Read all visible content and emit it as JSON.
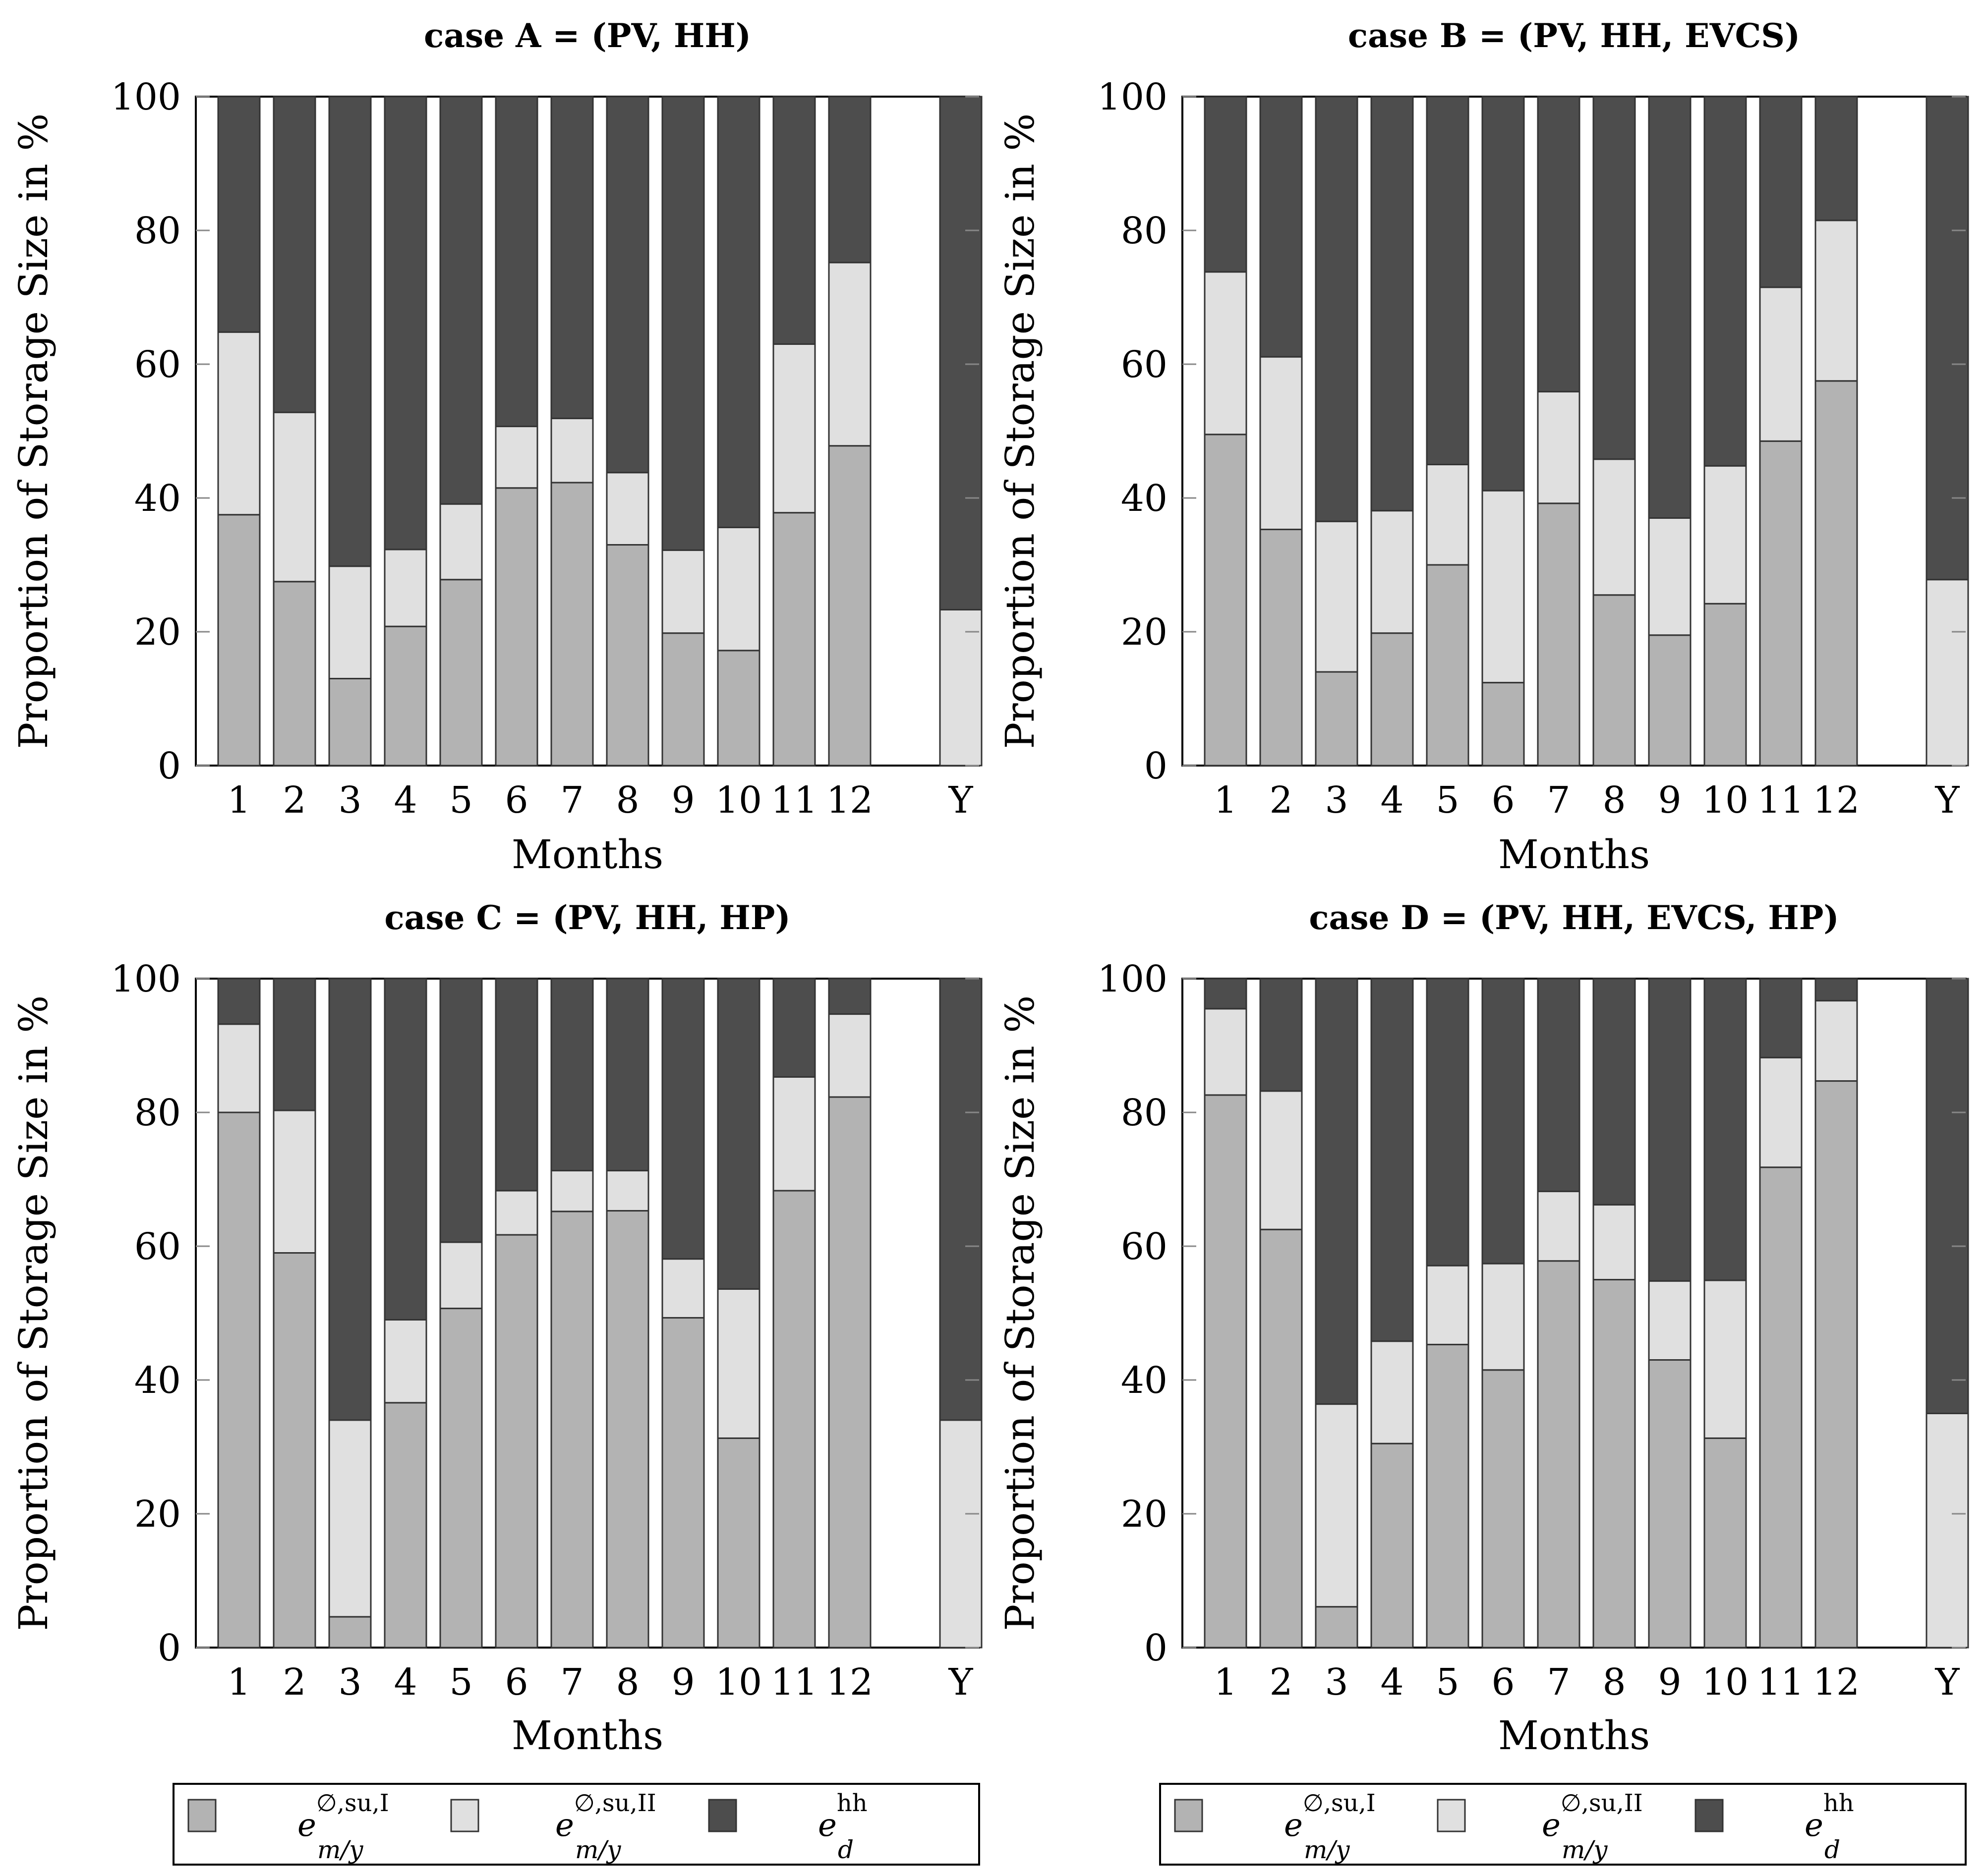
{
  "colors": {
    "seg1": "#b3b3b3",
    "seg2": "#e0e0e0",
    "seg3": "#4d4d4d",
    "stroke": "#333333",
    "axis": "#000000",
    "grid": "#888888"
  },
  "legend": {
    "items": [
      {
        "name": "e-m-y-su-I",
        "base": "e",
        "sup": "∅,su,I",
        "sub": "m/y",
        "color_key": "seg1"
      },
      {
        "name": "e-m-y-su-II",
        "base": "e",
        "sup": "∅,su,II",
        "sub": "m/y",
        "color_key": "seg2"
      },
      {
        "name": "e-d-hh",
        "base": "e",
        "sup": "hh",
        "sub": "d",
        "color_key": "seg3"
      }
    ]
  },
  "chart_data": [
    {
      "type": "bar",
      "stacked": true,
      "title": "case A = (PV, HH)",
      "xlabel": "Months",
      "ylabel": "Proportion of Storage Size in %",
      "ylim": [
        0,
        100
      ],
      "yticks": [
        0,
        20,
        40,
        60,
        80,
        100
      ],
      "categories": [
        "1",
        "2",
        "3",
        "4",
        "5",
        "6",
        "7",
        "8",
        "9",
        "10",
        "11",
        "12",
        "Y"
      ],
      "series": [
        {
          "values": [
            37.5,
            27.5,
            13,
            20.8,
            27.8,
            41.5,
            42.3,
            33,
            19.8,
            17.2,
            37.8,
            47.8,
            0
          ]
        },
        {
          "values": [
            27.3,
            25.3,
            16.8,
            11.5,
            11.3,
            9.2,
            9.6,
            10.8,
            12.4,
            18.4,
            25.2,
            27.4,
            23.3
          ]
        },
        {
          "values": [
            35.2,
            47.2,
            70.2,
            67.7,
            60.9,
            49.3,
            48.1,
            56.2,
            67.8,
            64.4,
            37,
            24.8,
            76.7
          ]
        }
      ]
    },
    {
      "type": "bar",
      "stacked": true,
      "title": "case B = (PV, HH, EVCS)",
      "xlabel": "Months",
      "ylabel": "Proportion of Storage Size in %",
      "ylim": [
        0,
        100
      ],
      "yticks": [
        0,
        20,
        40,
        60,
        80,
        100
      ],
      "categories": [
        "1",
        "2",
        "3",
        "4",
        "5",
        "6",
        "7",
        "8",
        "9",
        "10",
        "11",
        "12",
        "Y"
      ],
      "series": [
        {
          "values": [
            49.5,
            35.3,
            14,
            19.8,
            30,
            12.4,
            39.2,
            25.5,
            19.5,
            24.2,
            48.5,
            57.5,
            0
          ]
        },
        {
          "values": [
            24.3,
            25.8,
            22.5,
            18.3,
            15,
            28.7,
            16.7,
            20.3,
            17.5,
            20.6,
            23,
            24,
            27.8
          ]
        },
        {
          "values": [
            26.2,
            38.9,
            63.5,
            61.9,
            55,
            58.9,
            44.1,
            54.2,
            63,
            55.2,
            28.5,
            18.5,
            72.2
          ]
        }
      ]
    },
    {
      "type": "bar",
      "stacked": true,
      "title": "case C = (PV, HH, HP)",
      "xlabel": "Months",
      "ylabel": "Proportion of Storage Size in %",
      "ylim": [
        0,
        100
      ],
      "yticks": [
        0,
        20,
        40,
        60,
        80,
        100
      ],
      "categories": [
        "1",
        "2",
        "3",
        "4",
        "5",
        "6",
        "7",
        "8",
        "9",
        "10",
        "11",
        "12",
        "Y"
      ],
      "series": [
        {
          "values": [
            80,
            59,
            4.6,
            36.6,
            50.7,
            61.7,
            65.2,
            65.3,
            49.3,
            31.3,
            68.3,
            82.3,
            0
          ]
        },
        {
          "values": [
            13.2,
            21.3,
            29.4,
            12.4,
            9.9,
            6.6,
            6.1,
            6,
            8.8,
            22.3,
            17,
            12.4,
            34
          ]
        },
        {
          "values": [
            6.8,
            19.7,
            66,
            51,
            39.4,
            31.7,
            28.7,
            28.7,
            41.9,
            46.4,
            14.7,
            5.3,
            66
          ]
        }
      ]
    },
    {
      "type": "bar",
      "stacked": true,
      "title": "case D = (PV, HH, EVCS, HP)",
      "xlabel": "Months",
      "ylabel": "Proportion of Storage Size in %",
      "ylim": [
        0,
        100
      ],
      "yticks": [
        0,
        20,
        40,
        60,
        80,
        100
      ],
      "categories": [
        "1",
        "2",
        "3",
        "4",
        "5",
        "6",
        "7",
        "8",
        "9",
        "10",
        "11",
        "12",
        "Y"
      ],
      "series": [
        {
          "values": [
            82.6,
            62.5,
            6.1,
            30.5,
            45.3,
            41.5,
            57.8,
            55,
            43,
            31.3,
            71.8,
            84.7,
            0
          ]
        },
        {
          "values": [
            12.9,
            20.7,
            30.3,
            15.3,
            11.8,
            15.9,
            10.4,
            11.2,
            11.8,
            23.6,
            16.4,
            12,
            35
          ]
        },
        {
          "values": [
            4.5,
            16.8,
            63.6,
            54.2,
            42.9,
            42.6,
            31.8,
            33.8,
            45.2,
            45.1,
            11.8,
            3.3,
            65
          ]
        }
      ]
    }
  ]
}
